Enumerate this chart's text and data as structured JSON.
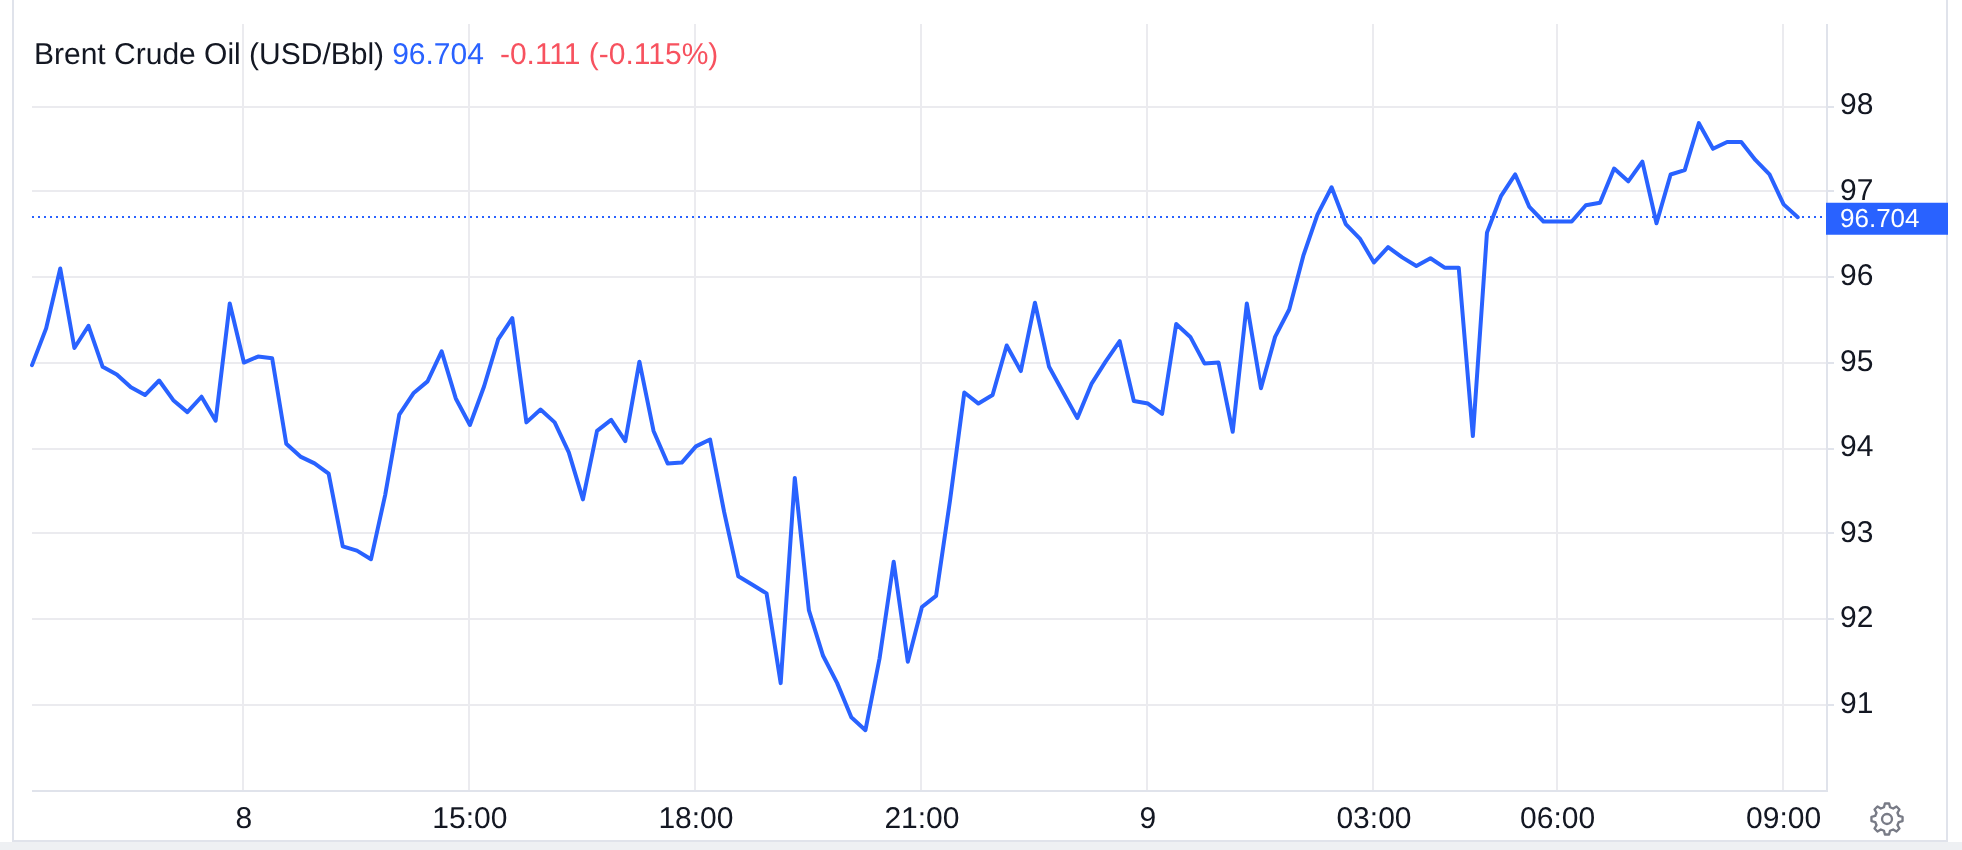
{
  "chart_data": {
    "type": "line",
    "title": "Brent Crude Oil (USD/Bbl)",
    "annotations": [
      "96.704",
      "-0.111 (-0.115%)"
    ],
    "categories": [
      null,
      null,
      null,
      null,
      null,
      null,
      null,
      null,
      null,
      null,
      null,
      null,
      null,
      null,
      null,
      "8",
      null,
      null,
      null,
      null,
      null,
      null,
      null,
      null,
      null,
      null,
      null,
      null,
      null,
      null,
      null,
      "15:00",
      null,
      null,
      null,
      null,
      null,
      null,
      null,
      null,
      null,
      null,
      null,
      null,
      null,
      null,
      null,
      "18:00",
      null,
      null,
      null,
      null,
      null,
      null,
      null,
      null,
      null,
      null,
      null,
      null,
      null,
      null,
      null,
      "21:00",
      null,
      null,
      null,
      null,
      null,
      null,
      null,
      null,
      null,
      null,
      null,
      null,
      null,
      null,
      null,
      "9",
      null,
      null,
      null,
      null,
      null,
      null,
      null,
      null,
      null,
      null,
      null,
      null,
      null,
      null,
      null,
      "03:00",
      null,
      null,
      null,
      null,
      null,
      null,
      null,
      null,
      null,
      null,
      null,
      null,
      "06:00",
      null,
      null,
      null,
      null,
      null,
      null,
      null,
      null,
      null,
      null,
      null,
      null,
      null,
      null,
      null,
      "09:00",
      null,
      null,
      null
    ],
    "series": [
      {
        "color": "#2962ff",
        "values": [
          94.97,
          95.4,
          96.1,
          95.17,
          95.43,
          94.95,
          94.86,
          94.71,
          94.62,
          94.79,
          94.56,
          94.42,
          94.6,
          94.32,
          95.69,
          95.0,
          95.07,
          95.05,
          94.05,
          93.9,
          93.82,
          93.7,
          92.85,
          92.8,
          92.7,
          93.45,
          94.39,
          94.64,
          94.78,
          95.13,
          94.58,
          94.27,
          94.72,
          95.27,
          95.52,
          94.3,
          94.45,
          94.3,
          93.95,
          93.4,
          94.2,
          94.33,
          94.08,
          95.01,
          94.2,
          93.82,
          93.83,
          94.02,
          94.1,
          93.25,
          92.5,
          92.4,
          92.3,
          91.25,
          93.65,
          92.1,
          91.57,
          91.25,
          90.85,
          90.7,
          91.54,
          92.67,
          91.5,
          92.14,
          92.27,
          93.4,
          94.65,
          94.52,
          94.62,
          95.2,
          94.9,
          95.7,
          94.95,
          94.65,
          94.35,
          94.75,
          95.01,
          95.25,
          94.55,
          94.52,
          94.4,
          95.45,
          95.3,
          94.99,
          95.0,
          94.19,
          95.69,
          94.7,
          95.3,
          95.62,
          96.25,
          96.73,
          97.05,
          96.62,
          96.45,
          96.17,
          96.35,
          96.23,
          96.13,
          96.22,
          96.11,
          96.11,
          94.14,
          96.52,
          96.95,
          97.2,
          96.82,
          96.65,
          96.65,
          96.65,
          96.84,
          96.87,
          97.27,
          97.12,
          97.35,
          96.63,
          97.2,
          97.25,
          97.8,
          97.5,
          97.58,
          97.58,
          97.37,
          97.2,
          96.85,
          96.7,
          null,
          null
        ]
      }
    ],
    "ylim": [
      90,
      98.96
    ],
    "yticks": [
      91,
      92,
      93,
      94,
      95,
      96,
      97,
      98
    ],
    "grid": true,
    "ref_lines": [
      {
        "axis": "y",
        "value": 96.704,
        "label": "96.704",
        "color": "#2962ff",
        "line_style": "dotted"
      }
    ]
  }
}
